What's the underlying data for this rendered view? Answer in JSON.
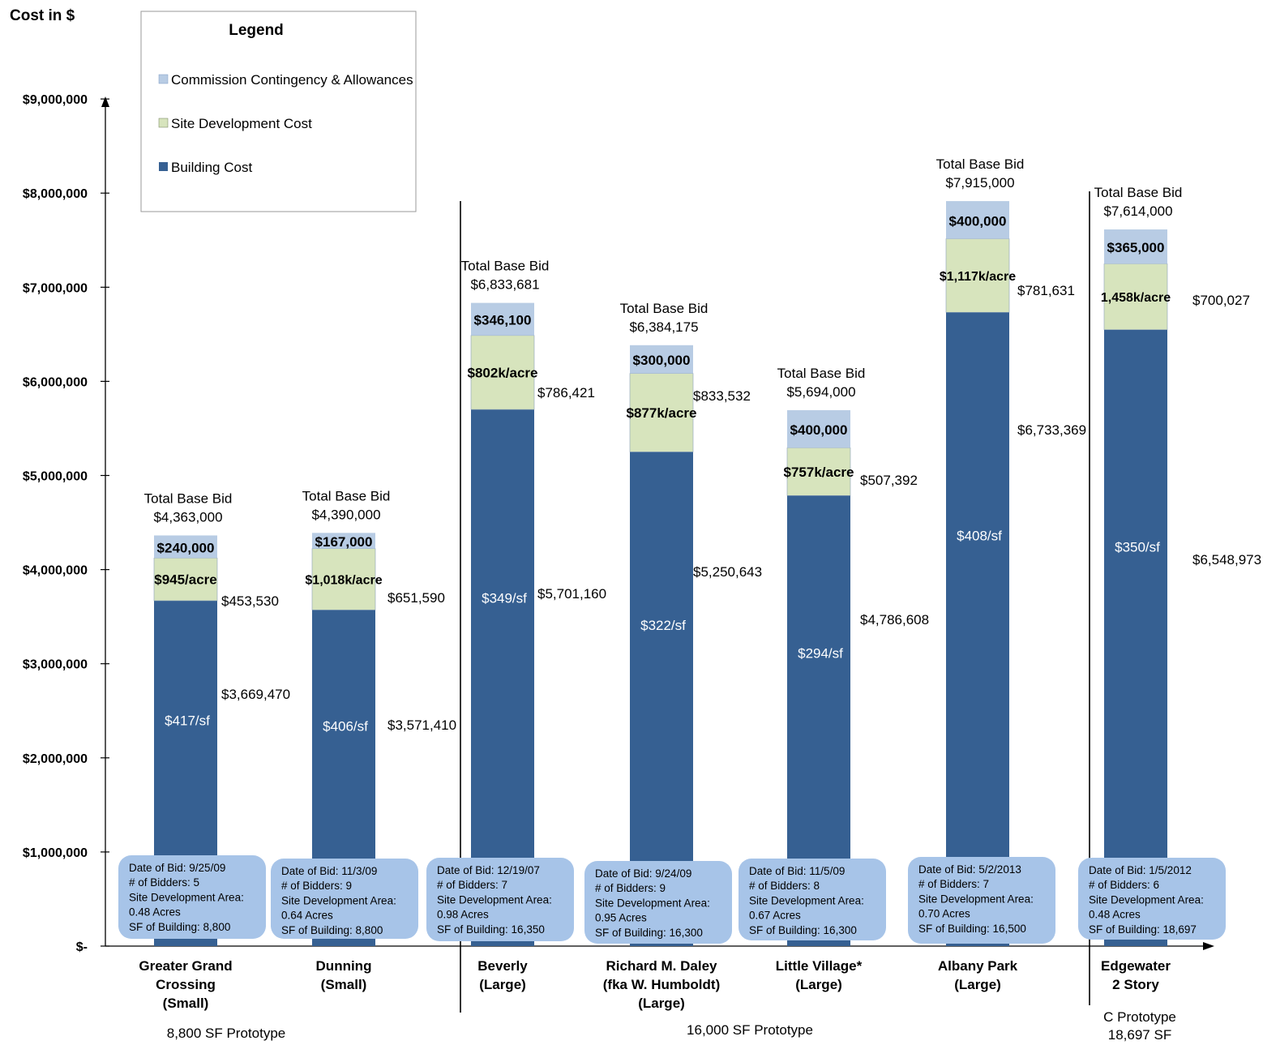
{
  "chart_data": {
    "type": "bar",
    "stacked": true,
    "ylabel": "Cost in $",
    "ylim": [
      0,
      9000000
    ],
    "yticks": [
      {
        "value": 0,
        "label": "$-"
      },
      {
        "value": 1000000,
        "label": "$1,000,000"
      },
      {
        "value": 2000000,
        "label": "$2,000,000"
      },
      {
        "value": 3000000,
        "label": "$3,000,000"
      },
      {
        "value": 4000000,
        "label": "$4,000,000"
      },
      {
        "value": 5000000,
        "label": "$5,000,000"
      },
      {
        "value": 6000000,
        "label": "$6,000,000"
      },
      {
        "value": 7000000,
        "label": "$7,000,000"
      },
      {
        "value": 8000000,
        "label": "$8,000,000"
      },
      {
        "value": 9000000,
        "label": "$9,000,000"
      }
    ],
    "grid": false,
    "legend": {
      "title": "Legend",
      "placement": "top-left",
      "entries": [
        {
          "name": "Commission Contingency & Allowances",
          "color": "#b8cce4"
        },
        {
          "name": "Site Development Cost",
          "color": "#d7e4bd"
        },
        {
          "name": "Building Cost",
          "color": "#366092"
        }
      ]
    },
    "colors": {
      "building": "#366092",
      "site": "#d7e4bd",
      "contingency": "#b8cce4",
      "infobox": "#a7c4e8"
    },
    "total_label": "Total Base Bid",
    "categories": [
      {
        "name_lines": [
          "Greater Grand",
          "Crossing",
          "(Small)"
        ],
        "building": 3669470,
        "building_label": "$3,669,470",
        "building_rate": "$417/sf",
        "site": 453530,
        "site_label": "$453,530",
        "site_rate": "$945/acre",
        "contingency": 240000,
        "contingency_label": "$240,000",
        "total": 4363000,
        "total_label": "$4,363,000",
        "info": [
          "Date of Bid: 9/25/09",
          "# of Bidders: 5",
          "Site Development Area:",
          "0.48 Acres",
          "SF of Building: 8,800"
        ]
      },
      {
        "name_lines": [
          "Dunning",
          "(Small)"
        ],
        "building": 3571410,
        "building_label": "$3,571,410",
        "building_rate": "$406/sf",
        "site": 651590,
        "site_label": "$651,590",
        "site_rate": "$1,018k/acre",
        "contingency": 167000,
        "contingency_label": "$167,000",
        "total": 4390000,
        "total_label": "$4,390,000",
        "info": [
          "Date of Bid: 11/3/09",
          "# of Bidders: 9",
          "Site Development Area:",
          "0.64 Acres",
          "SF of Building: 8,800"
        ]
      },
      {
        "name_lines": [
          "Beverly",
          "(Large)"
        ],
        "building": 5701160,
        "building_label": "$5,701,160",
        "building_rate": "$349/sf",
        "site": 786421,
        "site_label": "$786,421",
        "site_rate": "$802k/acre",
        "contingency": 346100,
        "contingency_label": "$346,100",
        "total": 6833681,
        "total_label": "$6,833,681",
        "info": [
          "Date of Bid: 12/19/07",
          "# of Bidders: 7",
          "Site Development Area:",
          "0.98 Acres",
          "SF of Building: 16,350"
        ]
      },
      {
        "name_lines": [
          "Richard M. Daley",
          "(fka W. Humboldt)",
          "(Large)"
        ],
        "building": 5250643,
        "building_label": "$5,250,643",
        "building_rate": "$322/sf",
        "site": 833532,
        "site_label": "$833,532",
        "site_rate": "$877k/acre",
        "contingency": 300000,
        "contingency_label": "$300,000",
        "total": 6384175,
        "total_label": "$6,384,175",
        "info": [
          "Date of Bid: 9/24/09",
          "# of Bidders: 9",
          "Site Development Area:",
          "0.95 Acres",
          "SF of Building: 16,300"
        ]
      },
      {
        "name_lines": [
          "Little Village*",
          "(Large)"
        ],
        "building": 4786608,
        "building_label": "$4,786,608",
        "building_rate": "$294/sf",
        "site": 507392,
        "site_label": "$507,392",
        "site_rate": "$757k/acre",
        "contingency": 400000,
        "contingency_label": "$400,000",
        "total": 5694000,
        "total_label": "$5,694,000",
        "info": [
          "Date of Bid: 11/5/09",
          "# of Bidders: 8",
          "Site Development Area:",
          "0.67 Acres",
          "SF of Building: 16,300"
        ]
      },
      {
        "name_lines": [
          "Albany Park",
          "(Large)"
        ],
        "building": 6733369,
        "building_label": "$6,733,369",
        "building_rate": "$408/sf",
        "site": 781631,
        "site_label": "$781,631",
        "site_rate": "$1,117k/acre",
        "contingency": 400000,
        "contingency_label": "$400,000",
        "total": 7915000,
        "total_label": "$7,915,000",
        "info": [
          "Date of Bid: 5/2/2013",
          "# of Bidders: 7",
          "Site Development Area:",
          "0.70 Acres",
          "SF of Building: 16,500"
        ]
      },
      {
        "name_lines": [
          "Edgewater",
          "2 Story"
        ],
        "building": 6548973,
        "building_label": "$6,548,973",
        "building_rate": "$350/sf",
        "site": 700027,
        "site_label": "$700,027",
        "site_rate": "1,458k/acre",
        "contingency": 365000,
        "contingency_label": "$365,000",
        "total": 7614000,
        "total_label": "$7,614,000",
        "info": [
          "Date of Bid: 1/5/2012",
          "# of Bidders: 6",
          "Site Development Area:",
          "0.48 Acres",
          "SF of Building: 18,697"
        ]
      }
    ],
    "groups": [
      {
        "label_lines": [
          "8,800 SF Prototype"
        ]
      },
      {
        "label_lines": [
          "16,000 SF Prototype"
        ]
      },
      {
        "label_lines": [
          "C Prototype",
          "18,697 SF"
        ]
      }
    ]
  }
}
